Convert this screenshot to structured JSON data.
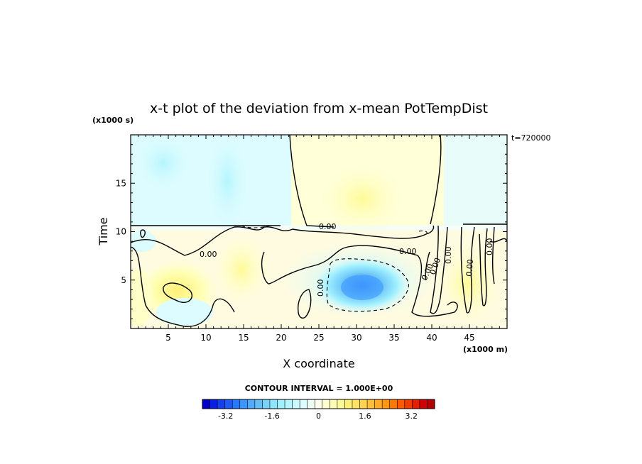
{
  "chart_data": {
    "type": "heatmap",
    "title": "x-t plot of the deviation from x-mean PotTempDist",
    "xlabel": "X coordinate",
    "ylabel": "Time",
    "x_unit": "(x1000 m)",
    "y_unit": "(x1000 s)",
    "time_annotation": "t=720000",
    "xlim": [
      0,
      50
    ],
    "ylim": [
      0,
      20
    ],
    "x_ticks": [
      5,
      10,
      15,
      20,
      25,
      30,
      35,
      40,
      45
    ],
    "y_ticks": [
      5,
      10,
      15
    ],
    "contour_labels": [
      "0.00",
      "0.00",
      "0.00",
      "0.00",
      "0.00",
      "0.00",
      "0.00",
      "0.00",
      "0.00"
    ],
    "contour_interval": "CONTOUR INTERVAL = 1.000E+00",
    "colorbar": {
      "range": [
        -4,
        4
      ],
      "tick_values": [
        -3.2,
        -1.6,
        0,
        1.6,
        3.2
      ],
      "tick_labels": [
        "-3.2",
        "-1.6",
        "0",
        "1.6",
        "3.2"
      ],
      "colors": [
        "#0000c8",
        "#0a1ee6",
        "#1440f0",
        "#1e5af5",
        "#2878ff",
        "#3c96ff",
        "#50aaff",
        "#64bef5",
        "#78d2fa",
        "#8ce6ff",
        "#a0f0ff",
        "#b4f5ff",
        "#c8faff",
        "#dcfcff",
        "#f0fff5",
        "#fffff0",
        "#ffffd2",
        "#ffffb4",
        "#fffa96",
        "#fff078",
        "#ffe164",
        "#ffd250",
        "#ffbe3c",
        "#ffaa28",
        "#ff9614",
        "#ff7800",
        "#ff5a00",
        "#f03c00",
        "#e61e00",
        "#d20000",
        "#b40000"
      ]
    },
    "features": [
      {
        "kind": "cold_min",
        "x": 31,
        "t": 4.2,
        "value": -2.0
      },
      {
        "kind": "warm_max",
        "x": 7,
        "t": 3.8,
        "value": 1.0
      },
      {
        "kind": "warm_region",
        "x_range": [
          21,
          41
        ],
        "t_range": [
          11,
          20
        ],
        "value": 0.4
      },
      {
        "kind": "cold_region",
        "x_range": [
          0,
          20
        ],
        "t_range": [
          11,
          20
        ],
        "value": -0.5
      }
    ]
  }
}
